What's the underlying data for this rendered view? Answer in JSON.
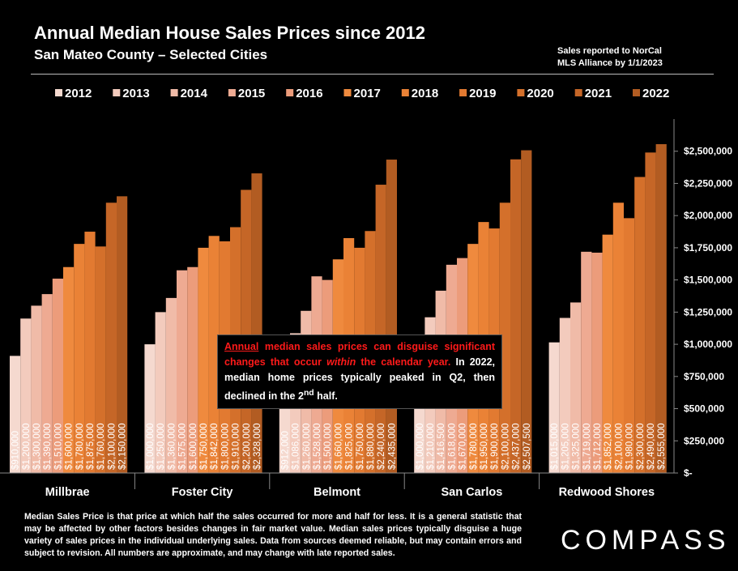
{
  "header": {
    "title": "Annual Median House Sales Prices since 2012",
    "subtitle": "San Mateo County – Selected Cities",
    "note_line1": "Sales reported to NorCal",
    "note_line2": "MLS Alliance by 1/1/2023"
  },
  "annotation": {
    "red_underlined": "Annual",
    "red_rest": " median sales prices can disguise significant changes that occur ",
    "red_italic": "within",
    "red_end": " the calendar year.",
    "white_text": " In 2022, median home prices typically peaked in Q2, then declined in the 2",
    "superscript": "nd",
    "white_end": " half."
  },
  "footer": {
    "text": "Median Sales Price is that price at which half the sales occurred for more and half for less. It is a general statistic that may be affected by other factors besides changes in fair market value. Median sales prices typically disguise a huge variety of sales prices in the individual underlying sales. Data from sources deemed reliable, but may contain errors and subject to revision.  All numbers are approximate, and may change with late reported sales."
  },
  "logo": {
    "text": "COMPASS"
  },
  "chart_data": {
    "type": "bar",
    "title": "Annual Median House Sales Prices since 2012",
    "categories": [
      "Millbrae",
      "Foster City",
      "Belmont",
      "San Carlos",
      "Redwood Shores"
    ],
    "series": [
      {
        "name": "2012",
        "color": "#f5d9cf",
        "values": [
          910000,
          1000000,
          912000,
          1000000,
          1015000
        ]
      },
      {
        "name": "2013",
        "color": "#f3cbbd",
        "values": [
          1200000,
          1250000,
          1086000,
          1210000,
          1205000
        ]
      },
      {
        "name": "2014",
        "color": "#f0bba8",
        "values": [
          1300000,
          1360000,
          1260000,
          1416500,
          1325000
        ]
      },
      {
        "name": "2015",
        "color": "#eeaa92",
        "values": [
          1390000,
          1575000,
          1528000,
          1618000,
          1719000
        ]
      },
      {
        "name": "2016",
        "color": "#ec9c7b",
        "values": [
          1510000,
          1600000,
          1500000,
          1670000,
          1712000
        ]
      },
      {
        "name": "2017",
        "color": "#ef8a3e",
        "values": [
          1600000,
          1750000,
          1660000,
          1780000,
          1852000
        ]
      },
      {
        "name": "2018",
        "color": "#ea8236",
        "values": [
          1780000,
          1842000,
          1825000,
          1950000,
          2100000
        ]
      },
      {
        "name": "2019",
        "color": "#e27a31",
        "values": [
          1875000,
          1800000,
          1750000,
          1900000,
          1980000
        ]
      },
      {
        "name": "2020",
        "color": "#d4702b",
        "values": [
          1760000,
          1910000,
          1880000,
          2100000,
          2300000
        ]
      },
      {
        "name": "2021",
        "color": "#c56627",
        "values": [
          2100000,
          2200000,
          2240000,
          2437000,
          2490000
        ]
      },
      {
        "name": "2022",
        "color": "#b25c22",
        "values": [
          2150000,
          2328000,
          2435000,
          2507500,
          2555000
        ]
      }
    ],
    "bar_labels": [
      [
        "$910,000",
        "$1,200,000",
        "$1,300,000",
        "$1,390,000",
        "$1,510,000",
        "$1,600,000",
        "$1,780,000",
        "$1,875,000",
        "$1,760,000",
        "$2,100,000",
        "$2,150,000"
      ],
      [
        "$1,000,000",
        "$1,250,000",
        "$1,360,000",
        "$1,575,000",
        "$1,600,000",
        "$1,750,000",
        "$1,842,000",
        "$1,800,000",
        "$1,910,000",
        "$2,200,000",
        "$2,328,000"
      ],
      [
        "$912,000",
        "$1,086,000",
        "$1,260,000",
        "$1,528,000",
        "$1,500,000",
        "$1,660,000",
        "$1,825,000",
        "$1,750,000",
        "$1,880,000",
        "$2,240,000",
        "$2,435,000"
      ],
      [
        "$1,000,000",
        "$1,210,000",
        "$1,416,500",
        "$1,618,000",
        "$1,670,000",
        "$1,780,000",
        "$1,950,000",
        "$1,900,000",
        "$2,100,000",
        "$2,437,000",
        "$2,507,500"
      ],
      [
        "$1,015,000",
        "$1,205,000",
        "$1,325,000",
        "$1,719,000",
        "$1,712,000",
        "$1,852,000",
        "$2,100,000",
        "$1,980,000",
        "$2,300,000",
        "$2,490,000",
        "$2,555,000"
      ]
    ],
    "y_ticks": [
      0,
      250000,
      500000,
      750000,
      1000000,
      1250000,
      1500000,
      1750000,
      2000000,
      2250000,
      2500000
    ],
    "y_tick_labels": [
      "$-",
      "$250,000",
      "$500,000",
      "$750,000",
      "$1,000,000",
      "$1,250,000",
      "$1,500,000",
      "$1,750,000",
      "$2,000,000",
      "$2,250,000",
      "$2,500,000"
    ],
    "ylim": [
      0,
      2750000
    ],
    "xlabel": "",
    "ylabel": "",
    "legend_position": "top",
    "grid": false
  }
}
